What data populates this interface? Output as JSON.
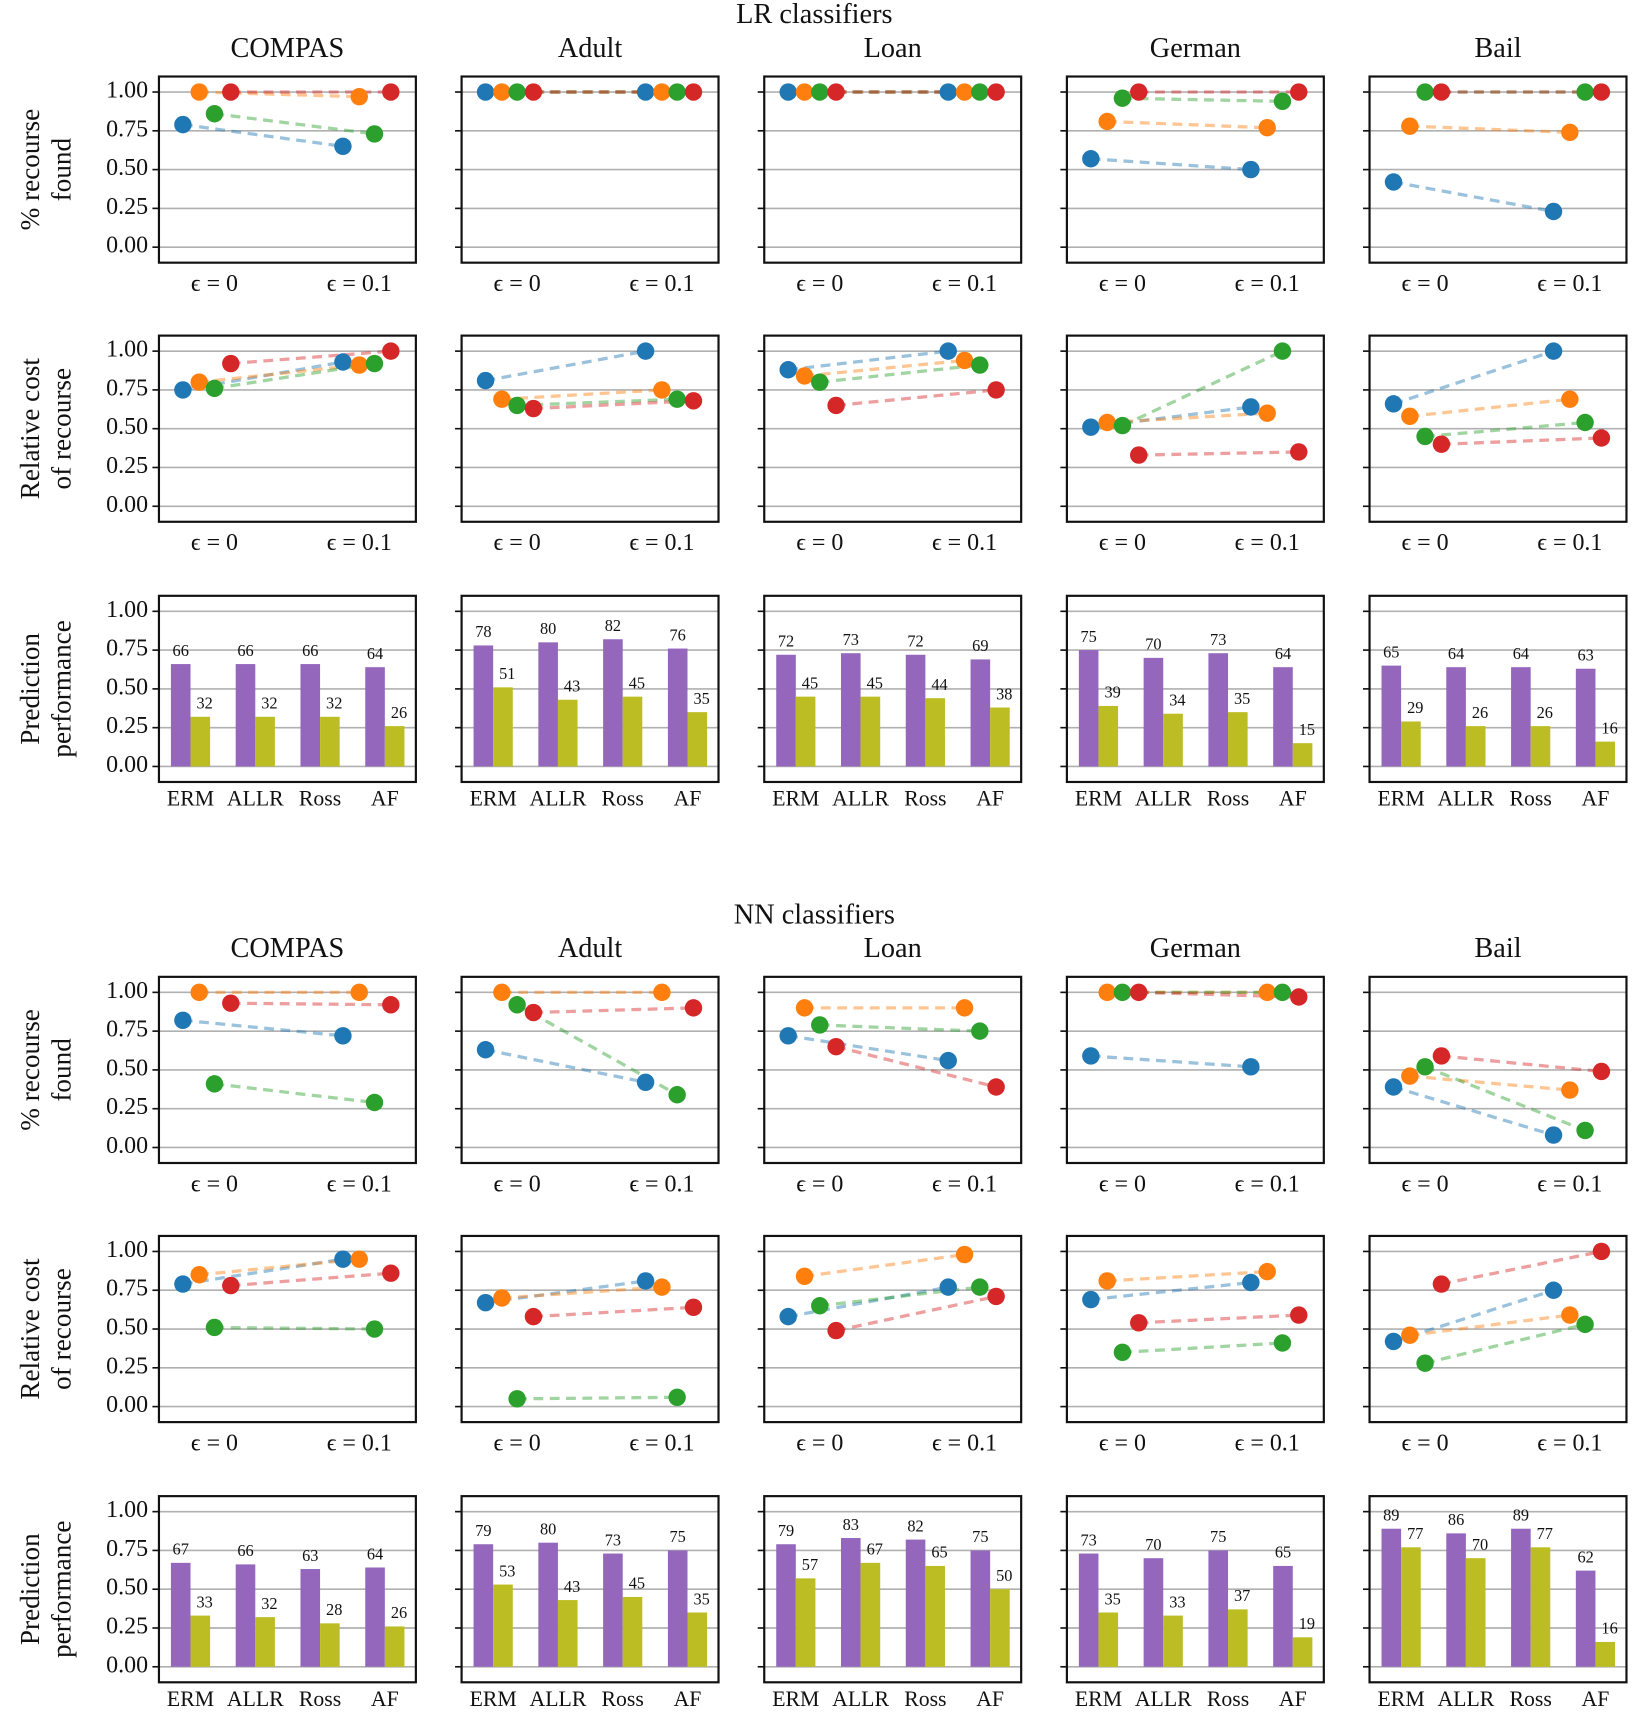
{
  "chart_data": {
    "ylim": [
      -0.1,
      1.1
    ],
    "yticks": [
      {
        "value": 0,
        "label": "0.00"
      },
      {
        "value": 0.25,
        "label": "0.25"
      },
      {
        "value": 0.5,
        "label": "0.50"
      },
      {
        "value": 0.75,
        "label": "0.75"
      },
      {
        "value": 1,
        "label": "1.00"
      }
    ],
    "grid": true,
    "dot_categories": [
      "ϵ = 0",
      "ϵ = 0.1"
    ],
    "dot_colors": [
      "#1f77b4",
      "#ff7f0e",
      "#2ca02c",
      "#d62728"
    ],
    "bar_categories": [
      "ERM",
      "ALLR",
      "Ross",
      "AF"
    ],
    "bar_colors": [
      "#9467bd",
      "#bcbd22"
    ],
    "groups": [
      {
        "title": "LR classifiers",
        "datasets": [
          "COMPAS",
          "Adult",
          "Loan",
          "German",
          "Bail"
        ],
        "rows": [
          {
            "type": "dot",
            "ylabel": [
              "% recourse",
              "found"
            ],
            "panels": [
              {
                "values": [
                  [
                    0.79,
                    0.65
                  ],
                  [
                    1.0,
                    0.97
                  ],
                  [
                    0.86,
                    0.73
                  ],
                  [
                    1.0,
                    1.0
                  ]
                ]
              },
              {
                "values": [
                  [
                    1.0,
                    1.0
                  ],
                  [
                    1.0,
                    1.0
                  ],
                  [
                    1.0,
                    1.0
                  ],
                  [
                    1.0,
                    1.0
                  ]
                ]
              },
              {
                "values": [
                  [
                    1.0,
                    1.0
                  ],
                  [
                    1.0,
                    1.0
                  ],
                  [
                    1.0,
                    1.0
                  ],
                  [
                    1.0,
                    1.0
                  ]
                ]
              },
              {
                "values": [
                  [
                    0.57,
                    0.5
                  ],
                  [
                    0.81,
                    0.77
                  ],
                  [
                    0.96,
                    0.94
                  ],
                  [
                    1.0,
                    1.0
                  ]
                ]
              },
              {
                "values": [
                  [
                    0.42,
                    0.23
                  ],
                  [
                    0.78,
                    0.74
                  ],
                  [
                    1.0,
                    1.0
                  ],
                  [
                    1.0,
                    1.0
                  ]
                ]
              }
            ]
          },
          {
            "type": "dot",
            "ylabel": [
              "Relative cost",
              "of recourse"
            ],
            "panels": [
              {
                "values": [
                  [
                    0.75,
                    0.93
                  ],
                  [
                    0.8,
                    0.91
                  ],
                  [
                    0.76,
                    0.92
                  ],
                  [
                    0.92,
                    1.0
                  ]
                ]
              },
              {
                "values": [
                  [
                    0.81,
                    1.0
                  ],
                  [
                    0.69,
                    0.75
                  ],
                  [
                    0.65,
                    0.69
                  ],
                  [
                    0.63,
                    0.68
                  ]
                ]
              },
              {
                "values": [
                  [
                    0.88,
                    1.0
                  ],
                  [
                    0.84,
                    0.94
                  ],
                  [
                    0.8,
                    0.91
                  ],
                  [
                    0.65,
                    0.75
                  ]
                ]
              },
              {
                "values": [
                  [
                    0.51,
                    0.64
                  ],
                  [
                    0.54,
                    0.6
                  ],
                  [
                    0.52,
                    1.0
                  ],
                  [
                    0.33,
                    0.35
                  ]
                ]
              },
              {
                "values": [
                  [
                    0.66,
                    1.0
                  ],
                  [
                    0.58,
                    0.69
                  ],
                  [
                    0.45,
                    0.54
                  ],
                  [
                    0.4,
                    0.44
                  ]
                ]
              }
            ]
          },
          {
            "type": "bar",
            "ylabel": [
              "Prediction",
              "performance"
            ],
            "panels": [
              {
                "values": [
                  [
                    0.66,
                    0.66,
                    0.66,
                    0.64
                  ],
                  [
                    0.32,
                    0.32,
                    0.32,
                    0.26
                  ]
                ],
                "value_labels": [
                  [
                    "66",
                    "66",
                    "66",
                    "64"
                  ],
                  [
                    "32",
                    "32",
                    "32",
                    "26"
                  ]
                ]
              },
              {
                "values": [
                  [
                    0.78,
                    0.8,
                    0.82,
                    0.76
                  ],
                  [
                    0.51,
                    0.43,
                    0.45,
                    0.35
                  ]
                ],
                "value_labels": [
                  [
                    "78",
                    "80",
                    "82",
                    "76"
                  ],
                  [
                    "51",
                    "43",
                    "45",
                    "35"
                  ]
                ]
              },
              {
                "values": [
                  [
                    0.72,
                    0.73,
                    0.72,
                    0.69
                  ],
                  [
                    0.45,
                    0.45,
                    0.44,
                    0.38
                  ]
                ],
                "value_labels": [
                  [
                    "72",
                    "73",
                    "72",
                    "69"
                  ],
                  [
                    "45",
                    "45",
                    "44",
                    "38"
                  ]
                ]
              },
              {
                "values": [
                  [
                    0.75,
                    0.7,
                    0.73,
                    0.64
                  ],
                  [
                    0.39,
                    0.34,
                    0.35,
                    0.15
                  ]
                ],
                "value_labels": [
                  [
                    "75",
                    "70",
                    "73",
                    "64"
                  ],
                  [
                    "39",
                    "34",
                    "35",
                    "15"
                  ]
                ]
              },
              {
                "values": [
                  [
                    0.65,
                    0.64,
                    0.64,
                    0.63
                  ],
                  [
                    0.29,
                    0.26,
                    0.26,
                    0.16
                  ]
                ],
                "value_labels": [
                  [
                    "65",
                    "64",
                    "64",
                    "63"
                  ],
                  [
                    "29",
                    "26",
                    "26",
                    "16"
                  ]
                ]
              }
            ]
          }
        ]
      },
      {
        "title": "NN classifiers",
        "datasets": [
          "COMPAS",
          "Adult",
          "Loan",
          "German",
          "Bail"
        ],
        "rows": [
          {
            "type": "dot",
            "ylabel": [
              "% recourse",
              "found"
            ],
            "panels": [
              {
                "values": [
                  [
                    0.82,
                    0.72
                  ],
                  [
                    1.0,
                    1.0
                  ],
                  [
                    0.41,
                    0.29
                  ],
                  [
                    0.93,
                    0.92
                  ]
                ]
              },
              {
                "values": [
                  [
                    0.63,
                    0.42
                  ],
                  [
                    1.0,
                    1.0
                  ],
                  [
                    0.92,
                    0.34
                  ],
                  [
                    0.87,
                    0.9
                  ]
                ]
              },
              {
                "values": [
                  [
                    0.72,
                    0.56
                  ],
                  [
                    0.9,
                    0.9
                  ],
                  [
                    0.79,
                    0.75
                  ],
                  [
                    0.65,
                    0.39
                  ]
                ]
              },
              {
                "values": [
                  [
                    0.59,
                    0.52
                  ],
                  [
                    1.0,
                    1.0
                  ],
                  [
                    1.0,
                    1.0
                  ],
                  [
                    1.0,
                    0.97
                  ]
                ]
              },
              {
                "values": [
                  [
                    0.39,
                    0.08
                  ],
                  [
                    0.46,
                    0.37
                  ],
                  [
                    0.52,
                    0.11
                  ],
                  [
                    0.59,
                    0.49
                  ]
                ]
              }
            ]
          },
          {
            "type": "dot",
            "ylabel": [
              "Relative cost",
              "of recourse"
            ],
            "panels": [
              {
                "values": [
                  [
                    0.79,
                    0.95
                  ],
                  [
                    0.85,
                    0.95
                  ],
                  [
                    0.51,
                    0.5
                  ],
                  [
                    0.78,
                    0.86
                  ]
                ]
              },
              {
                "values": [
                  [
                    0.67,
                    0.81
                  ],
                  [
                    0.7,
                    0.77
                  ],
                  [
                    0.05,
                    0.06
                  ],
                  [
                    0.58,
                    0.64
                  ]
                ]
              },
              {
                "values": [
                  [
                    0.58,
                    0.77
                  ],
                  [
                    0.84,
                    0.98
                  ],
                  [
                    0.65,
                    0.77
                  ],
                  [
                    0.49,
                    0.71
                  ]
                ]
              },
              {
                "values": [
                  [
                    0.69,
                    0.8
                  ],
                  [
                    0.81,
                    0.87
                  ],
                  [
                    0.35,
                    0.41
                  ],
                  [
                    0.54,
                    0.59
                  ]
                ]
              },
              {
                "values": [
                  [
                    0.42,
                    0.75
                  ],
                  [
                    0.46,
                    0.59
                  ],
                  [
                    0.28,
                    0.53
                  ],
                  [
                    0.79,
                    1.0
                  ]
                ]
              }
            ]
          },
          {
            "type": "bar",
            "ylabel": [
              "Prediction",
              "performance"
            ],
            "panels": [
              {
                "values": [
                  [
                    0.67,
                    0.66,
                    0.63,
                    0.64
                  ],
                  [
                    0.33,
                    0.32,
                    0.28,
                    0.26
                  ]
                ],
                "value_labels": [
                  [
                    "67",
                    "66",
                    "63",
                    "64"
                  ],
                  [
                    "33",
                    "32",
                    "28",
                    "26"
                  ]
                ]
              },
              {
                "values": [
                  [
                    0.79,
                    0.8,
                    0.73,
                    0.75
                  ],
                  [
                    0.53,
                    0.43,
                    0.45,
                    0.35
                  ]
                ],
                "value_labels": [
                  [
                    "79",
                    "80",
                    "73",
                    "75"
                  ],
                  [
                    "53",
                    "43",
                    "45",
                    "35"
                  ]
                ]
              },
              {
                "values": [
                  [
                    0.79,
                    0.83,
                    0.82,
                    0.75
                  ],
                  [
                    0.57,
                    0.67,
                    0.65,
                    0.5
                  ]
                ],
                "value_labels": [
                  [
                    "79",
                    "83",
                    "82",
                    "75"
                  ],
                  [
                    "57",
                    "67",
                    "65",
                    "50"
                  ]
                ]
              },
              {
                "values": [
                  [
                    0.73,
                    0.7,
                    0.75,
                    0.65
                  ],
                  [
                    0.35,
                    0.33,
                    0.37,
                    0.19
                  ]
                ],
                "value_labels": [
                  [
                    "73",
                    "70",
                    "75",
                    "65"
                  ],
                  [
                    "35",
                    "33",
                    "37",
                    "19"
                  ]
                ]
              },
              {
                "values": [
                  [
                    0.89,
                    0.86,
                    0.89,
                    0.62
                  ],
                  [
                    0.77,
                    0.7,
                    0.77,
                    0.16
                  ]
                ],
                "value_labels": [
                  [
                    "89",
                    "86",
                    "89",
                    "62"
                  ],
                  [
                    "77",
                    "70",
                    "77",
                    "16"
                  ]
                ]
              }
            ]
          }
        ]
      }
    ]
  }
}
